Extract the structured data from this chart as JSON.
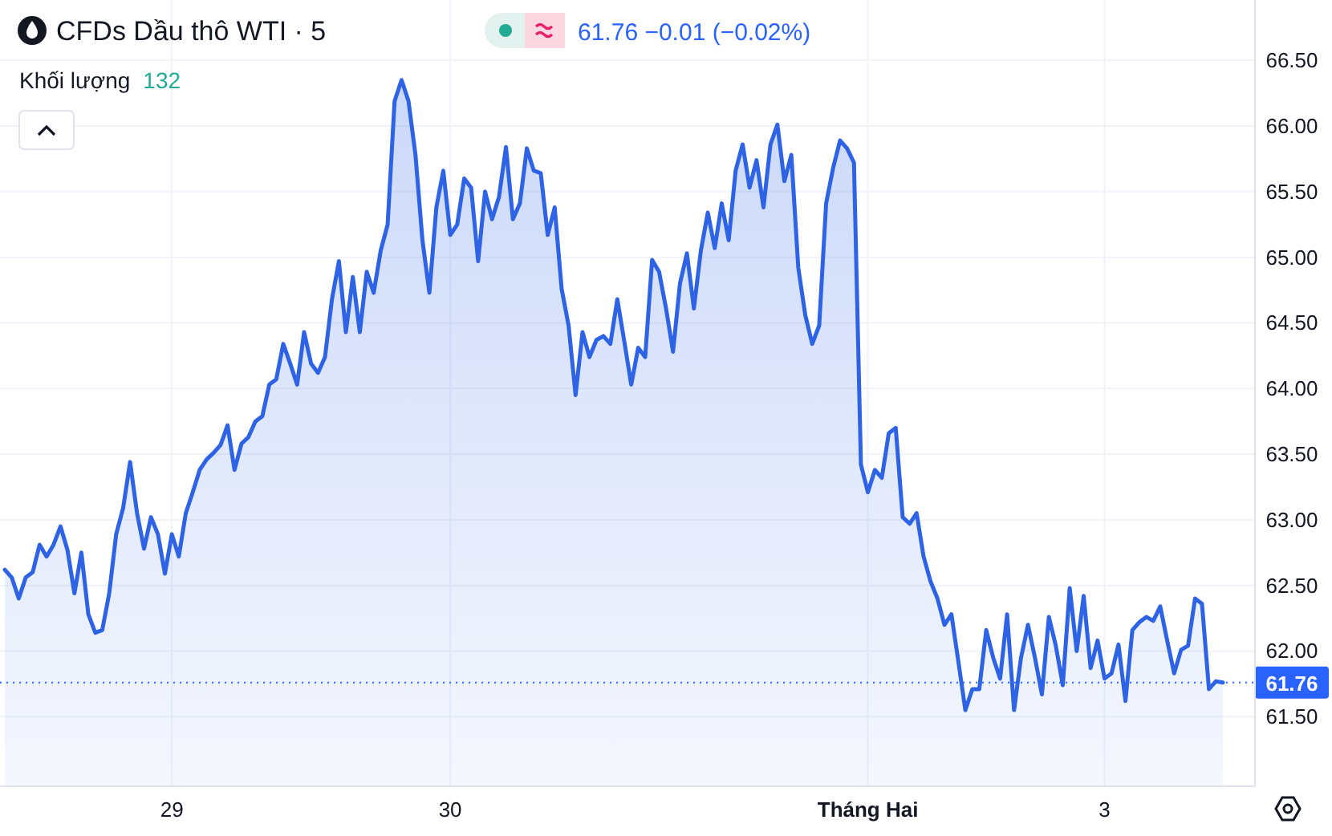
{
  "chart_data": {
    "type": "area",
    "title": "CFDs Dầu thô WTI · 5",
    "subtitle": "61.76 −0.01 (−0.02%)",
    "annotations": [
      "Khối lượng 132"
    ],
    "categories": [
      null,
      null,
      null,
      null,
      null,
      null,
      null,
      null,
      null,
      null,
      null,
      null,
      null,
      null,
      null,
      null,
      null,
      null,
      null,
      null,
      null,
      null,
      null,
      null,
      "29",
      null,
      null,
      null,
      null,
      null,
      null,
      null,
      null,
      null,
      null,
      null,
      null,
      null,
      null,
      null,
      null,
      null,
      null,
      null,
      null,
      null,
      null,
      null,
      null,
      null,
      null,
      null,
      null,
      null,
      null,
      null,
      null,
      null,
      null,
      null,
      null,
      null,
      null,
      null,
      "30",
      null,
      null,
      null,
      null,
      null,
      null,
      null,
      null,
      null,
      null,
      null,
      null,
      null,
      null,
      null,
      null,
      null,
      null,
      null,
      null,
      null,
      null,
      null,
      null,
      null,
      null,
      null,
      null,
      null,
      null,
      null,
      null,
      null,
      null,
      null,
      null,
      null,
      null,
      null,
      null,
      null,
      null,
      null,
      null,
      null,
      null,
      null,
      null,
      null,
      null,
      null,
      null,
      null,
      null,
      null,
      null,
      null,
      null,
      null,
      "Tháng Hai",
      null,
      null,
      null,
      null,
      null,
      null,
      null,
      null,
      null,
      null,
      null,
      null,
      null,
      null,
      null,
      null,
      null,
      null,
      null,
      null,
      null,
      null,
      null,
      null,
      null,
      null,
      null,
      null,
      null,
      null,
      null,
      null,
      null,
      "3",
      null,
      null,
      null,
      null,
      null,
      null,
      null,
      null,
      null,
      null,
      null,
      null,
      null,
      null,
      null,
      null,
      null
    ],
    "series": [
      {
        "color": "#2f63e6",
        "values": [
          62.62,
          62.56,
          62.4,
          62.56,
          62.6,
          62.81,
          62.72,
          62.81,
          62.95,
          62.77,
          62.44,
          62.75,
          62.28,
          62.14,
          62.16,
          62.44,
          62.89,
          63.09,
          63.44,
          63.05,
          62.78,
          63.02,
          62.89,
          62.59,
          62.89,
          62.72,
          63.05,
          63.21,
          63.38,
          63.46,
          63.51,
          63.57,
          63.72,
          63.38,
          63.58,
          63.63,
          63.75,
          63.79,
          64.03,
          64.07,
          64.34,
          64.19,
          64.03,
          64.43,
          64.19,
          64.12,
          64.24,
          64.68,
          64.97,
          64.43,
          64.85,
          64.43,
          64.89,
          64.73,
          65.05,
          65.25,
          66.19,
          66.35,
          66.19,
          65.78,
          65.13,
          64.73,
          65.38,
          65.66,
          65.17,
          65.25,
          65.6,
          65.53,
          64.97,
          65.5,
          65.29,
          65.46,
          65.84,
          65.29,
          65.41,
          65.83,
          65.66,
          65.64,
          65.17,
          65.38,
          64.76,
          64.48,
          63.95,
          64.43,
          64.24,
          64.37,
          64.4,
          64.34,
          64.68,
          64.36,
          64.03,
          64.31,
          64.24,
          64.98,
          64.89,
          64.61,
          64.28,
          64.8,
          65.03,
          64.61,
          65.05,
          65.34,
          65.07,
          65.41,
          65.13,
          65.66,
          65.86,
          65.53,
          65.74,
          65.38,
          65.86,
          66.01,
          65.58,
          65.78,
          64.92,
          64.56,
          64.34,
          64.48,
          65.41,
          65.68,
          65.89,
          65.83,
          65.72,
          63.42,
          63.21,
          63.38,
          63.32,
          63.66,
          63.7,
          63.02,
          62.97,
          63.05,
          62.72,
          62.53,
          62.4,
          62.2,
          62.28,
          61.92,
          61.55,
          61.71,
          61.71,
          62.16,
          61.95,
          61.79,
          62.28,
          61.55,
          61.95,
          62.2,
          61.95,
          61.67,
          62.26,
          62.04,
          61.74,
          62.48,
          62.0,
          62.42,
          61.87,
          62.08,
          61.79,
          61.83,
          62.05,
          61.62,
          62.16,
          62.22,
          62.26,
          62.23,
          62.34,
          62.08,
          61.83,
          62.01,
          62.04,
          62.4,
          62.36,
          61.71,
          61.77,
          61.76
        ]
      }
    ],
    "ylim": [
      60.97,
      66.96
    ],
    "yticks": [
      {
        "value": 61.5,
        "label": "61.50"
      },
      {
        "value": 62,
        "label": "62.00"
      },
      {
        "value": 62.5,
        "label": "62.50"
      },
      {
        "value": 63,
        "label": "63.00"
      },
      {
        "value": 63.5,
        "label": "63.50"
      },
      {
        "value": 64,
        "label": "64.00"
      },
      {
        "value": 64.5,
        "label": "64.50"
      },
      {
        "value": 65,
        "label": "65.00"
      },
      {
        "value": 65.5,
        "label": "65.50"
      },
      {
        "value": 66,
        "label": "66.00"
      },
      {
        "value": 66.5,
        "label": "66.50"
      }
    ],
    "ref_lines": [
      {
        "axis": "y",
        "value": 61.76,
        "label": "61.76",
        "color": "#2962ff",
        "line_style": "dotted"
      }
    ],
    "grid": true,
    "marker": "none",
    "line_style": "solid"
  }
}
